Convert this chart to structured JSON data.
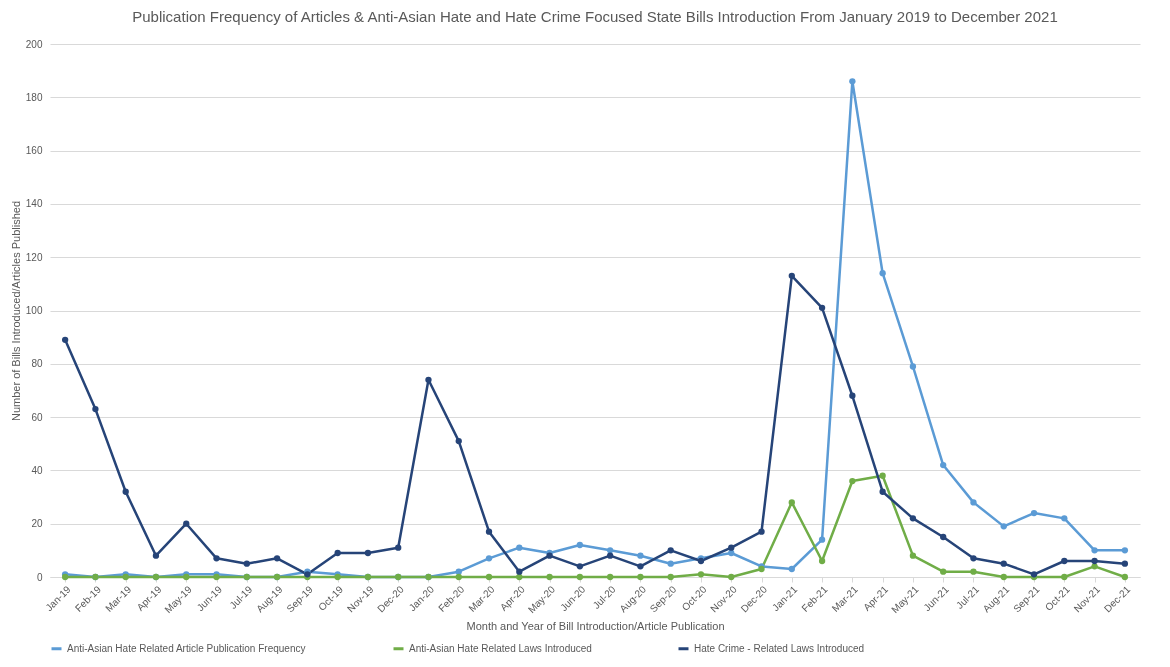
{
  "chart_data": {
    "type": "line",
    "title": "Publication Frequency of Articles & Anti-Asian Hate and Hate Crime Focused State Bills Introduction From January 2019 to December 2021",
    "xlabel": "Month and Year of Bill Introduction/Article Publication",
    "ylabel": "Number of Bills  Introduced/Articles Published",
    "categories": [
      "Jan-19",
      "Feb-19",
      "Mar-19",
      "Apr-19",
      "May-19",
      "Jun-19",
      "Jul-19",
      "Aug-19",
      "Sep-19",
      "Oct-19",
      "Nov-19",
      "Dec-20",
      "Jan-20",
      "Feb-20",
      "Mar-20",
      "Apr-20",
      "May-20",
      "Jun-20",
      "Jul-20",
      "Aug-20",
      "Sep-20",
      "Oct-20",
      "Nov-20",
      "Dec-20",
      "Jan-21",
      "Feb-21",
      "Mar-21",
      "Apr-21",
      "May-21",
      "Jun-21",
      "Jul-21",
      "Aug-21",
      "Sep-21",
      "Oct-21",
      "Nov-21",
      "Dec-21"
    ],
    "series": [
      {
        "name": "Anti-Asian Hate Related Article Publication Frequency",
        "color": "#5b9bd5",
        "values": [
          1,
          0,
          1,
          0,
          1,
          1,
          0,
          0,
          2,
          1,
          0,
          0,
          0,
          2,
          7,
          11,
          9,
          12,
          10,
          8,
          5,
          7,
          9,
          4,
          3,
          14,
          186,
          114,
          79,
          42,
          28,
          19,
          24,
          22,
          10,
          10
        ]
      },
      {
        "name": "Anti-Asian Hate Related Laws Introduced",
        "color": "#70ad47",
        "values": [
          0,
          0,
          0,
          0,
          0,
          0,
          0,
          0,
          0,
          0,
          0,
          0,
          0,
          0,
          0,
          0,
          0,
          0,
          0,
          0,
          0,
          1,
          0,
          3,
          28,
          6,
          36,
          38,
          8,
          2,
          2,
          0,
          0,
          0,
          4,
          0
        ]
      },
      {
        "name": "Hate Crime - Related Laws Introduced",
        "color": "#264478",
        "values": [
          89,
          63,
          32,
          8,
          20,
          7,
          5,
          7,
          1,
          9,
          9,
          11,
          74,
          51,
          17,
          2,
          8,
          4,
          8,
          4,
          10,
          6,
          11,
          17,
          113,
          101,
          68,
          32,
          22,
          15,
          7,
          5,
          1,
          6,
          6,
          5
        ]
      }
    ],
    "ylim": [
      0,
      200
    ],
    "yticks": [
      0,
      20,
      40,
      60,
      80,
      100,
      120,
      140,
      160,
      180,
      200
    ],
    "grid": "y",
    "legend": "bottom",
    "marker": "circle",
    "line_style": "solid"
  }
}
